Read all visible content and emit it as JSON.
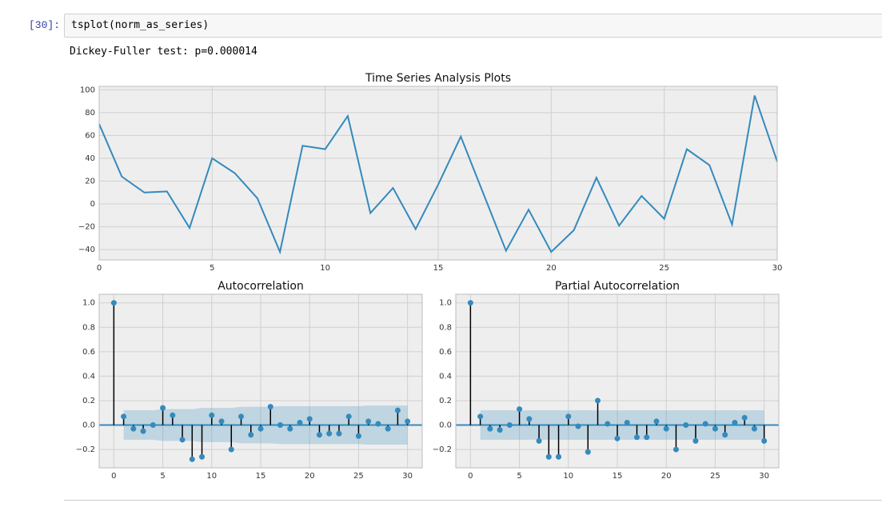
{
  "cell": {
    "prompt": "[30]:",
    "code": "tsplot(norm_as_series)",
    "output": "Dickey-Fuller test: p=0.000014"
  },
  "chart_data": [
    {
      "type": "line",
      "title": "Time Series Analysis Plots",
      "color": "#348abd",
      "grid": true,
      "x": [
        0,
        1,
        2,
        3,
        4,
        5,
        6,
        7,
        8,
        9,
        10,
        11,
        12,
        13,
        14,
        15,
        16,
        17,
        18,
        19,
        20,
        21,
        22,
        23,
        24,
        25,
        26,
        27,
        28,
        29,
        30
      ],
      "values": [
        70,
        24,
        10,
        11,
        -21,
        40,
        27,
        5,
        -42,
        51,
        48,
        77,
        -8,
        14,
        -22,
        17,
        59,
        9,
        -41,
        -5,
        -42,
        -23,
        23,
        -19,
        7,
        -13,
        48,
        34,
        -18,
        95,
        37
      ],
      "xlim": [
        0,
        30
      ],
      "ylim": [
        -49,
        103
      ],
      "xticks": [
        0,
        5,
        10,
        15,
        20,
        25,
        30
      ],
      "yticks": [
        {
          "value": -40,
          "label": "−40"
        },
        {
          "value": -20,
          "label": "−20"
        },
        0,
        20,
        40,
        60,
        80,
        100
      ]
    },
    {
      "type": "stem",
      "title": "Autocorrelation",
      "color": "#348abd",
      "grid": true,
      "x": [
        0,
        1,
        2,
        3,
        4,
        5,
        6,
        7,
        8,
        9,
        10,
        11,
        12,
        13,
        14,
        15,
        16,
        17,
        18,
        19,
        20,
        21,
        22,
        23,
        24,
        25,
        26,
        27,
        28,
        29,
        30
      ],
      "values": [
        1.0,
        0.07,
        -0.03,
        -0.05,
        0.0,
        0.14,
        0.08,
        -0.12,
        -0.28,
        -0.26,
        0.08,
        0.03,
        -0.2,
        0.07,
        -0.08,
        -0.03,
        0.15,
        0.0,
        -0.03,
        0.02,
        0.05,
        -0.08,
        -0.07,
        -0.07,
        0.07,
        -0.09,
        0.03,
        0.01,
        -0.03,
        0.12,
        0.03
      ],
      "confidence": [
        null,
        0.12,
        0.12,
        0.12,
        0.12,
        0.13,
        0.13,
        0.13,
        0.13,
        0.14,
        0.14,
        0.14,
        0.14,
        0.15,
        0.15,
        0.15,
        0.15,
        0.155,
        0.155,
        0.155,
        0.155,
        0.155,
        0.155,
        0.155,
        0.155,
        0.155,
        0.16,
        0.16,
        0.16,
        0.16,
        0.16
      ],
      "xlim": [
        -1.5,
        31.5
      ],
      "ylim": [
        -0.35,
        1.07
      ],
      "xticks": [
        0,
        5,
        10,
        15,
        20,
        25,
        30
      ],
      "yticks": [
        {
          "value": -0.2,
          "label": "−0.2"
        },
        {
          "value": 0,
          "label": "0.0"
        },
        0.2,
        0.4,
        0.6,
        0.8,
        {
          "value": 1,
          "label": "1.0"
        }
      ]
    },
    {
      "type": "stem",
      "title": "Partial Autocorrelation",
      "color": "#348abd",
      "grid": true,
      "x": [
        0,
        1,
        2,
        3,
        4,
        5,
        6,
        7,
        8,
        9,
        10,
        11,
        12,
        13,
        14,
        15,
        16,
        17,
        18,
        19,
        20,
        21,
        22,
        23,
        24,
        25,
        26,
        27,
        28,
        29,
        30
      ],
      "values": [
        1.0,
        0.07,
        -0.03,
        -0.04,
        0.0,
        0.13,
        0.05,
        -0.13,
        -0.26,
        -0.26,
        0.07,
        -0.01,
        -0.22,
        0.2,
        0.01,
        -0.11,
        0.02,
        -0.1,
        -0.1,
        0.03,
        -0.03,
        -0.2,
        0.0,
        -0.13,
        0.01,
        -0.03,
        -0.08,
        0.02,
        0.06,
        -0.03,
        -0.13
      ],
      "confidence": [
        null,
        0.12,
        0.12,
        0.12,
        0.12,
        0.12,
        0.12,
        0.12,
        0.12,
        0.12,
        0.12,
        0.12,
        0.12,
        0.12,
        0.12,
        0.12,
        0.12,
        0.12,
        0.12,
        0.12,
        0.12,
        0.12,
        0.12,
        0.12,
        0.12,
        0.12,
        0.12,
        0.12,
        0.12,
        0.12,
        0.12
      ],
      "xlim": [
        -1.5,
        31.5
      ],
      "ylim": [
        -0.35,
        1.07
      ],
      "xticks": [
        0,
        5,
        10,
        15,
        20,
        25,
        30
      ],
      "yticks": [
        {
          "value": -0.2,
          "label": "−0.2"
        },
        {
          "value": 0,
          "label": "0.0"
        },
        0.2,
        0.4,
        0.6,
        0.8,
        {
          "value": 1,
          "label": "1.0"
        }
      ]
    }
  ]
}
